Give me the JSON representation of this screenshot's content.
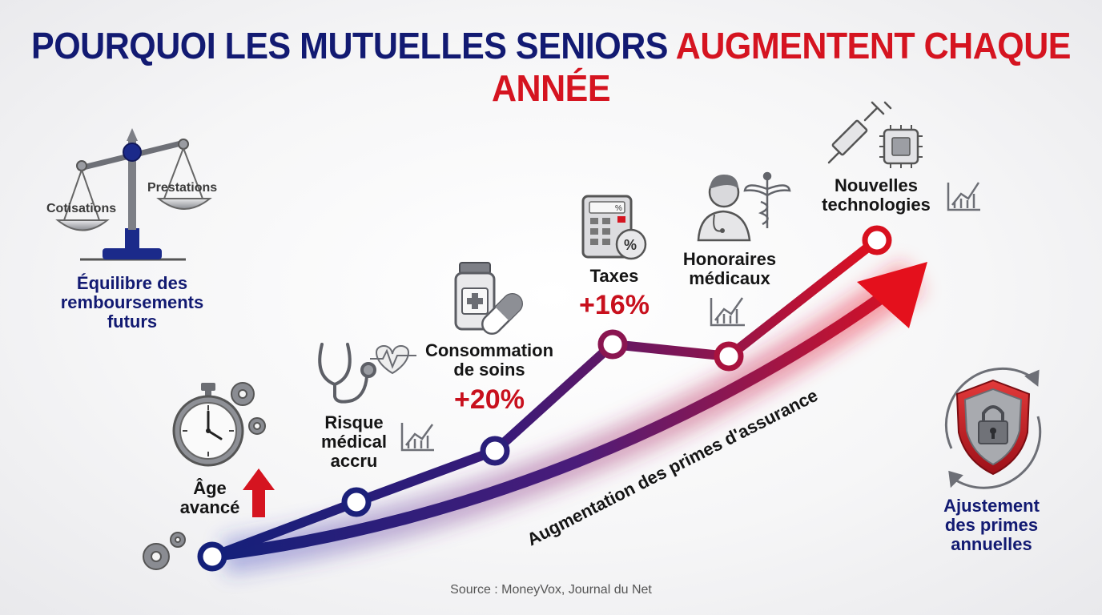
{
  "title": {
    "part1": "POURQUOI LES MUTUELLES SENIORS",
    "part2": "AUGMENTENT CHAQUE ANNÉE"
  },
  "balance": {
    "left_label": "Cotisations",
    "right_label": "Prestations",
    "caption_line1": "Équilibre des",
    "caption_line2": "remboursements",
    "caption_line3": "futurs"
  },
  "steps": [
    {
      "line1": "Âge",
      "line2": "avancé",
      "icon": "stopwatch-icon"
    },
    {
      "line1": "Risque",
      "line2": "médical",
      "line3": "accru",
      "icon": "stethoscope-icon"
    },
    {
      "line1": "Consommation",
      "line2": "de soins",
      "value": "+20%",
      "icon": "medicine-icon"
    },
    {
      "line1": "Taxes",
      "value": "+16%",
      "icon": "calculator-icon"
    },
    {
      "line1": "Honoraires",
      "line2": "médicaux",
      "icon": "doctor-icon"
    },
    {
      "line1": "Nouvelles",
      "line2": "technologies",
      "icon": "syringe-chip-icon"
    }
  ],
  "trend_label": "Augmentation des primes d'assurance",
  "adjustment": {
    "line1": "Ajustement",
    "line2": "des primes",
    "line3": "annuelles",
    "icon": "shield-lock-icon"
  },
  "source": "Source : MoneyVox, Journal du Net",
  "colors": {
    "navy": "#121a72",
    "red": "#d51420",
    "purple": "#5a1a6e",
    "text": "#151515"
  }
}
